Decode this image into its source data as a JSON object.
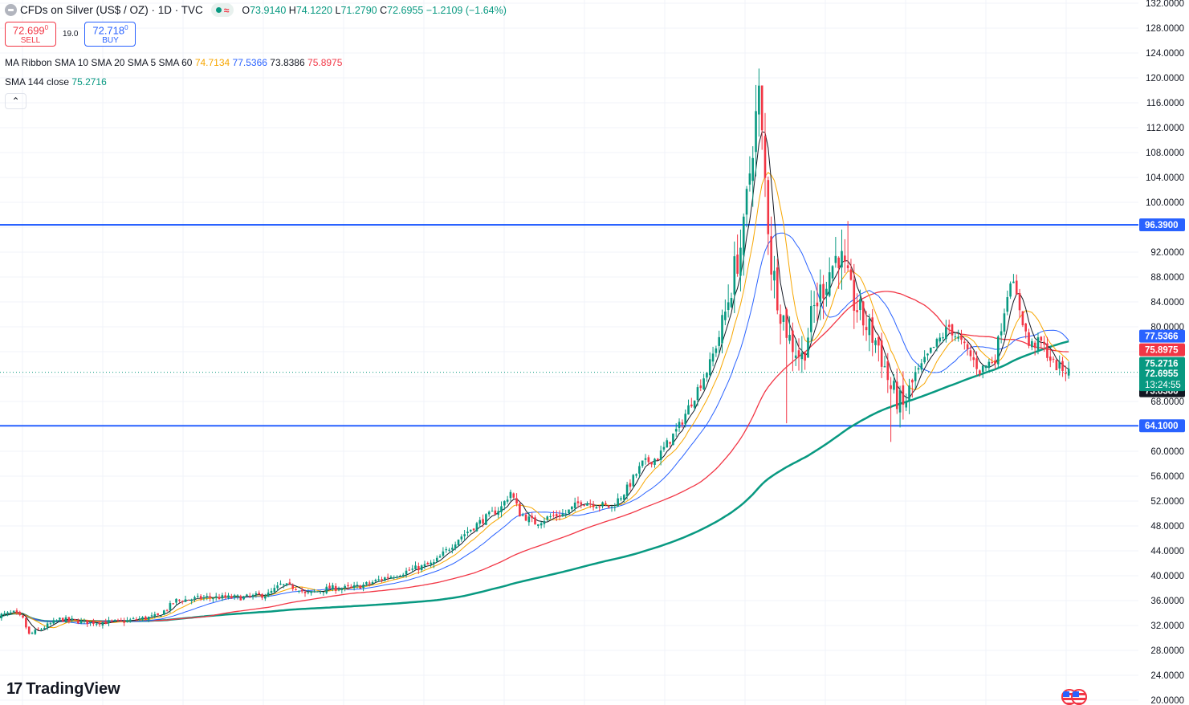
{
  "header": {
    "symbol_title": "CFDs on Silver (US$ / OZ) · 1D · TVC",
    "ohlc": {
      "o_label": "O",
      "o": "73.9140",
      "h_label": "H",
      "h": "74.1220",
      "l_label": "L",
      "l": "71.2790",
      "c_label": "C",
      "c": "72.6955",
      "change": "−1.2109 (−1.64%)"
    }
  },
  "trade": {
    "sell_price": "72.699",
    "sell_price_sup": "0",
    "sell_label": "SELL",
    "spread": "19.0",
    "buy_price": "72.718",
    "buy_price_sup": "0",
    "buy_label": "BUY"
  },
  "indicators": {
    "ma_ribbon": {
      "name": "MA Ribbon",
      "params": "SMA 10 SMA 20 SMA 5 SMA 60",
      "values": [
        "74.7134",
        "77.5366",
        "73.8386",
        "75.8975"
      ],
      "colors": [
        "#f7a600",
        "#2962ff",
        "#131722",
        "#f23645"
      ]
    },
    "sma144": {
      "name": "SMA 144",
      "params": "close",
      "value": "75.2716",
      "color": "#089981"
    }
  },
  "collapse_glyph": "⌃",
  "branding": {
    "logo_text": "TradingView"
  },
  "chart_data": {
    "type": "candlestick",
    "y_axis": {
      "scale": "linear",
      "min": 20,
      "max": 132,
      "ticks": [
        "132.0000",
        "128.0000",
        "124.0000",
        "120.0000",
        "116.0000",
        "112.0000",
        "108.0000",
        "104.0000",
        "100.0000",
        "96.0000",
        "92.0000",
        "88.0000",
        "84.0000",
        "80.0000",
        "76.0000",
        "72.0000",
        "68.0000",
        "64.0000",
        "60.0000",
        "56.0000",
        "52.0000",
        "48.0000",
        "44.0000",
        "40.0000",
        "36.0000",
        "32.0000",
        "28.0000",
        "24.0000",
        "20.0000"
      ],
      "position": "right"
    },
    "grid": true,
    "horizontal_lines": [
      {
        "value": 96.39,
        "label": "96.3900",
        "color": "#2962ff"
      },
      {
        "value": 64.1,
        "label": "64.1000",
        "color": "#2962ff"
      }
    ],
    "last_price": {
      "value": 72.6955,
      "label": "72.6955",
      "countdown": "13:24:55",
      "color": "#089981"
    },
    "price_labels": [
      {
        "value": 77.5366,
        "label": "77.5366",
        "color": "#2962ff"
      },
      {
        "value": 75.8975,
        "label": "75.8975",
        "color": "#f23645"
      },
      {
        "value": 75.2716,
        "label": "75.2716",
        "color": "#089981"
      },
      {
        "value": 74.7134,
        "label": "74.7134",
        "color": "#f7a600"
      },
      {
        "value": 73.8386,
        "label": "73.8386",
        "color": "#131722"
      }
    ],
    "anchors": [
      [
        0,
        33.6
      ],
      [
        5,
        34.0
      ],
      [
        8,
        33.0
      ],
      [
        10,
        30.5
      ],
      [
        14,
        31.5
      ],
      [
        20,
        33.0
      ],
      [
        30,
        32.5
      ],
      [
        40,
        32.6
      ],
      [
        45,
        33.0
      ],
      [
        52,
        33.5
      ],
      [
        58,
        36.0
      ],
      [
        68,
        36.5
      ],
      [
        80,
        36.5
      ],
      [
        88,
        37.0
      ],
      [
        92,
        38.5
      ],
      [
        98,
        38.0
      ],
      [
        100,
        37.0
      ],
      [
        108,
        38.0
      ],
      [
        115,
        38.0
      ],
      [
        120,
        38.6
      ],
      [
        125,
        39.5
      ],
      [
        135,
        41.0
      ],
      [
        142,
        42.0
      ],
      [
        150,
        46.0
      ],
      [
        158,
        49.0
      ],
      [
        164,
        51.0
      ],
      [
        167,
        53.5
      ],
      [
        170,
        50.0
      ],
      [
        175,
        48.5
      ],
      [
        180,
        49.5
      ],
      [
        185,
        50.0
      ],
      [
        190,
        52.0
      ],
      [
        195,
        51.5
      ],
      [
        200,
        51.0
      ],
      [
        205,
        54.0
      ],
      [
        210,
        58.0
      ],
      [
        215,
        59.0
      ],
      [
        222,
        64.0
      ],
      [
        228,
        70.0
      ],
      [
        232,
        74.0
      ],
      [
        236,
        80.0
      ],
      [
        240,
        89.0
      ],
      [
        243,
        95.0
      ],
      [
        246,
        110.0
      ],
      [
        248,
        117.0
      ],
      [
        249,
        110.0
      ],
      [
        252,
        90.0
      ],
      [
        255,
        83.0
      ],
      [
        258,
        78.0
      ],
      [
        262,
        75.0
      ],
      [
        266,
        83.0
      ],
      [
        270,
        88.0
      ],
      [
        274,
        92.0
      ],
      [
        278,
        85.0
      ],
      [
        282,
        81.0
      ],
      [
        287,
        77.0
      ],
      [
        291,
        70.0
      ],
      [
        295,
        67.0
      ],
      [
        299,
        72.0
      ],
      [
        304,
        76.0
      ],
      [
        310,
        80.0
      ],
      [
        316,
        76.0
      ],
      [
        320,
        73.0
      ],
      [
        325,
        75.0
      ],
      [
        330,
        88.0
      ],
      [
        333,
        83.0
      ],
      [
        336,
        77.0
      ],
      [
        340,
        77.5
      ],
      [
        344,
        74.0
      ],
      [
        349,
        72.7
      ]
    ]
  }
}
